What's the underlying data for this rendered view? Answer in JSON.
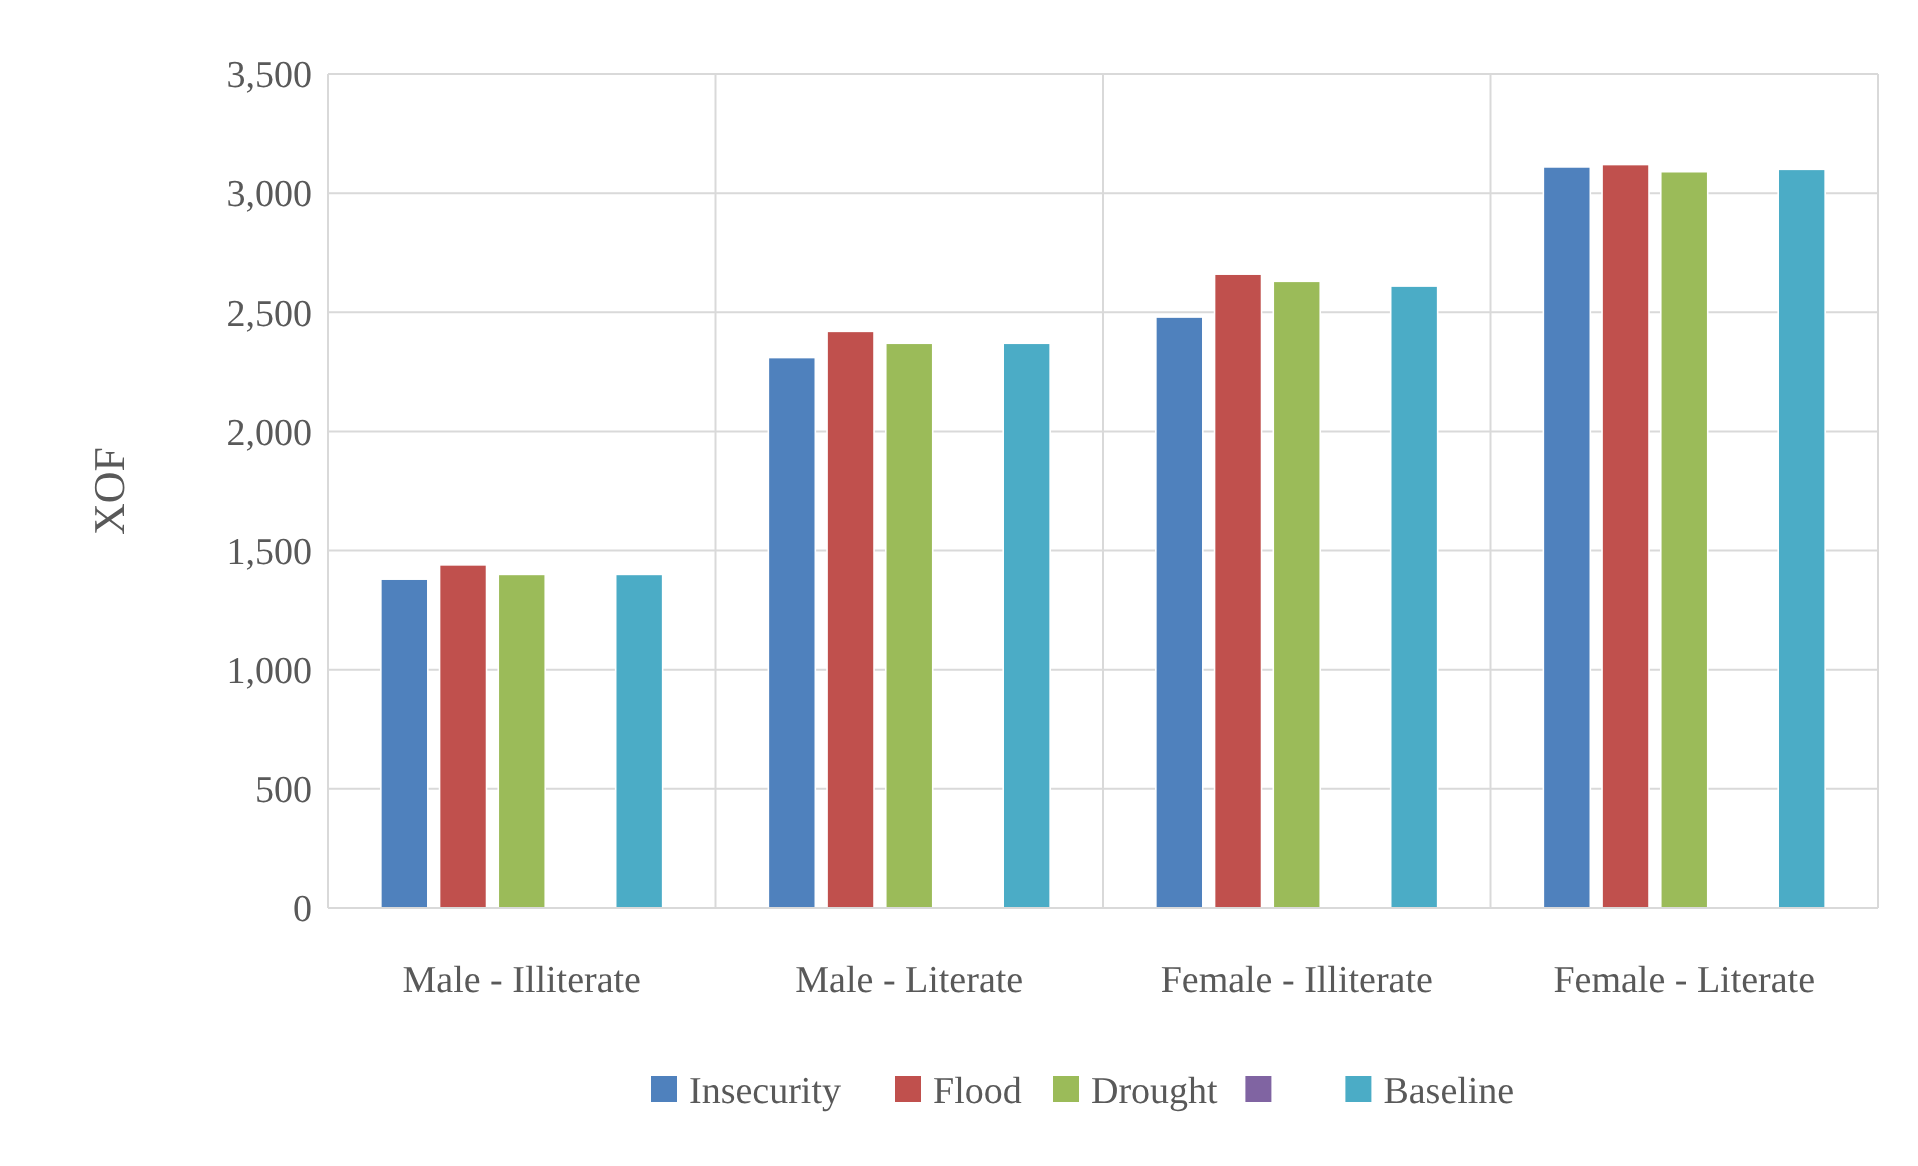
{
  "chart_data": {
    "type": "bar",
    "ylabel": "XOF",
    "categories": [
      "Male - Illiterate",
      "Male - Literate",
      "Female - Illiterate",
      "Female - Literate"
    ],
    "series": [
      {
        "name": "Insecurity",
        "color": "#4f81bd",
        "values": [
          1380,
          2310,
          2480,
          3110
        ]
      },
      {
        "name": "Flood",
        "color": "#c0504d",
        "values": [
          1440,
          2420,
          2660,
          3120
        ]
      },
      {
        "name": "Drought",
        "color": "#9bbb59",
        "values": [
          1400,
          2370,
          2630,
          3090
        ]
      },
      {
        "color": "#8064a2",
        "values": [
          null,
          null,
          null,
          null
        ]
      },
      {
        "name": "Baseline",
        "color": "#4bacc6",
        "values": [
          1400,
          2370,
          2610,
          3100
        ]
      }
    ],
    "ylim": [
      0,
      3500
    ],
    "yticks": [
      0,
      {
        "value": 500,
        "label": "500"
      },
      {
        "value": 1000,
        "label": "1,000"
      },
      {
        "value": 1500,
        "label": "1,500"
      },
      {
        "value": 2000,
        "label": "2,000"
      },
      {
        "value": 2500,
        "label": "2,500"
      },
      {
        "value": 3000,
        "label": "3,000"
      },
      {
        "value": 3500,
        "label": "3,500"
      }
    ],
    "grid": true,
    "legend": "bottom"
  }
}
